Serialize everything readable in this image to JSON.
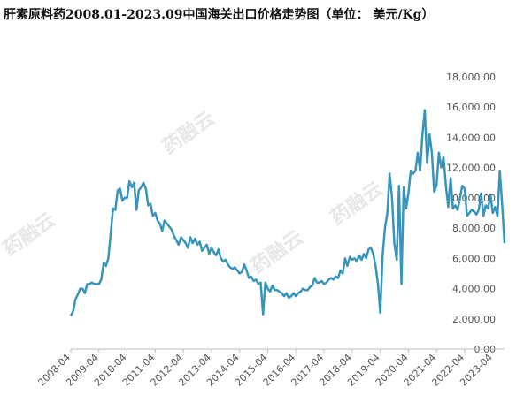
{
  "chart_data": {
    "type": "line",
    "title": "肝素原料药2008.01-2023.09中国海关出口价格走势图（单位： 美元/Kg）",
    "watermark": "药融云",
    "categories": [
      "2008-04",
      null,
      null,
      null,
      null,
      null,
      null,
      null,
      null,
      null,
      null,
      null,
      "2009-04",
      null,
      null,
      null,
      null,
      null,
      null,
      null,
      null,
      null,
      null,
      null,
      "2010-04",
      null,
      null,
      null,
      null,
      null,
      null,
      null,
      null,
      null,
      null,
      null,
      "2011-04",
      null,
      null,
      null,
      null,
      null,
      null,
      null,
      null,
      null,
      null,
      null,
      "2012-04",
      null,
      null,
      null,
      null,
      null,
      null,
      null,
      null,
      null,
      null,
      null,
      "2013-04",
      null,
      null,
      null,
      null,
      null,
      null,
      null,
      null,
      null,
      null,
      null,
      "2014-04",
      null,
      null,
      null,
      null,
      null,
      null,
      null,
      null,
      null,
      null,
      null,
      "2015-04",
      null,
      null,
      null,
      null,
      null,
      null,
      null,
      null,
      null,
      null,
      null,
      "2016-04",
      null,
      null,
      null,
      null,
      null,
      null,
      null,
      null,
      null,
      null,
      null,
      "2017-04",
      null,
      null,
      null,
      null,
      null,
      null,
      null,
      null,
      null,
      null,
      null,
      "2018-04",
      null,
      null,
      null,
      null,
      null,
      null,
      null,
      null,
      null,
      null,
      null,
      "2019-04",
      null,
      null,
      null,
      null,
      null,
      null,
      null,
      null,
      null,
      null,
      null,
      "2020-04",
      null,
      null,
      null,
      null,
      null,
      null,
      null,
      null,
      null,
      null,
      null,
      "2021-04",
      null,
      null,
      null,
      null,
      null,
      null,
      null,
      null,
      null,
      null,
      null,
      "2022-04",
      null,
      null,
      null,
      null,
      null,
      null,
      null,
      null,
      null,
      null,
      null,
      "2023-04",
      null,
      null,
      null,
      null,
      null
    ],
    "values": [
      2200,
      2500,
      3300,
      3600,
      4000,
      4000,
      3700,
      4300,
      4300,
      4400,
      4300,
      4300,
      4300,
      4600,
      5700,
      5500,
      6000,
      7600,
      9300,
      9200,
      10500,
      10600,
      9800,
      10000,
      10000,
      11100,
      10700,
      11000,
      9200,
      10500,
      10700,
      11000,
      10600,
      9500,
      9600,
      8800,
      9000,
      8500,
      8300,
      7800,
      8500,
      8300,
      8100,
      7900,
      7500,
      7200,
      6900,
      7400,
      7200,
      7000,
      6700,
      7400,
      7000,
      7300,
      6900,
      7100,
      6500,
      6700,
      6900,
      6300,
      6700,
      6400,
      6200,
      6600,
      6000,
      5800,
      5900,
      5600,
      5400,
      5300,
      5400,
      5200,
      5000,
      5100,
      5600,
      5200,
      4700,
      4800,
      4500,
      4600,
      4300,
      4400,
      2300,
      4400,
      4000,
      3800,
      4200,
      3900,
      3900,
      3800,
      3700,
      3500,
      3700,
      3400,
      3500,
      3700,
      3500,
      3700,
      3800,
      4000,
      3900,
      3900,
      4100,
      4200,
      4700,
      4400,
      4400,
      4500,
      4300,
      4400,
      4600,
      4700,
      4600,
      4800,
      4700,
      5200,
      5000,
      6000,
      5500,
      6100,
      5900,
      6000,
      5800,
      6200,
      5900,
      6300,
      6000,
      6600,
      6700,
      6300,
      5500,
      4300,
      2400,
      6200,
      8000,
      9000,
      11600,
      10000,
      7000,
      5900,
      10800,
      4300,
      10700,
      9300,
      10300,
      11800,
      11600,
      11800,
      13000,
      11800,
      14200,
      15800,
      12300,
      14200,
      13000,
      10400,
      10800,
      13000,
      12000,
      12700,
      10800,
      9400,
      11300,
      9300,
      9500,
      9200,
      10000,
      10800,
      10600,
      8800,
      9000,
      9200,
      9100,
      8900,
      9200,
      10300,
      8800,
      9500,
      9300,
      10200,
      9000,
      9400,
      8800,
      11800,
      9500,
      7000
    ],
    "color": "#3795bb",
    "ylim": [
      0,
      18000
    ],
    "yticks": [
      {
        "value": 0,
        "label": "0.00"
      },
      {
        "value": 2000,
        "label": "2,000.00"
      },
      {
        "value": 4000,
        "label": "4,000.00"
      },
      {
        "value": 6000,
        "label": "6,000.00"
      },
      {
        "value": 8000,
        "label": "8,000.00"
      },
      {
        "value": 10000,
        "label": "10,000.00"
      },
      {
        "value": 12000,
        "label": "12,000.00"
      },
      {
        "value": 14000,
        "label": "14,000.00"
      },
      {
        "value": 16000,
        "label": "16,000.00"
      },
      {
        "value": 18000,
        "label": "18,000.00"
      }
    ],
    "yaxis_side": "right"
  }
}
